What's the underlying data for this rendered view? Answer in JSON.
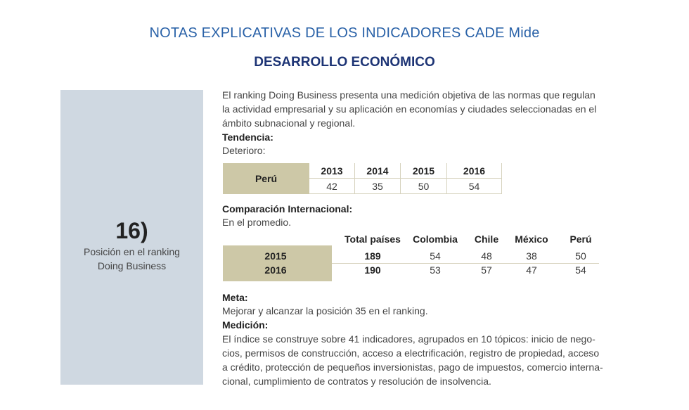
{
  "header": {
    "title": "NOTAS EXPLICATIVAS DE LOS INDICADORES CADE Mide",
    "subtitle": "DESARROLLO ECONÓMICO"
  },
  "sidebar": {
    "number": "16)",
    "label_lines": [
      "Posición en el ranking",
      "Doing Business"
    ]
  },
  "intro": [
    "El ranking Doing Business presenta una medición objetiva de las normas que regulan",
    "la actividad empresarial y su aplicación en economías y ciudades seleccionadas en el",
    "ámbito subnacional y regional."
  ],
  "tendencia": {
    "heading": "Tendencia:",
    "text": "Deterioro:",
    "row_label": "Perú",
    "years": [
      "2013",
      "2014",
      "2015",
      "2016"
    ],
    "values": [
      "42",
      "35",
      "50",
      "54"
    ]
  },
  "comparacion": {
    "heading": "Comparación Internacional:",
    "text": "En el promedio.",
    "columns": [
      "Total países",
      "Colombia",
      "Chile",
      "México",
      "Perú"
    ],
    "rows": [
      {
        "year": "2015",
        "values": [
          "189",
          "54",
          "48",
          "38",
          "50"
        ]
      },
      {
        "year": "2016",
        "values": [
          "190",
          "53",
          "57",
          "47",
          "54"
        ]
      }
    ]
  },
  "meta": {
    "heading": "Meta:",
    "text": "Mejorar y alcanzar la posición 35 en el ranking."
  },
  "medicion": {
    "heading": "Medición:",
    "lines": [
      "El índice se construye sobre 41 indicadores, agrupados en 10 tópicos: inicio de nego-",
      "cios, permisos de construcción, acceso a electrificación, registro de propiedad, acceso",
      "a crédito, protección de pequeños inversionistas, pago de impuestos, comercio interna-",
      "cional, cumplimiento de contratos y resolución de insolvencia."
    ]
  },
  "colors": {
    "title": "#2a62a8",
    "subtitle": "#1d3475",
    "sidebar": "#cfd8e1",
    "table_accent": "#cdc8a7"
  }
}
